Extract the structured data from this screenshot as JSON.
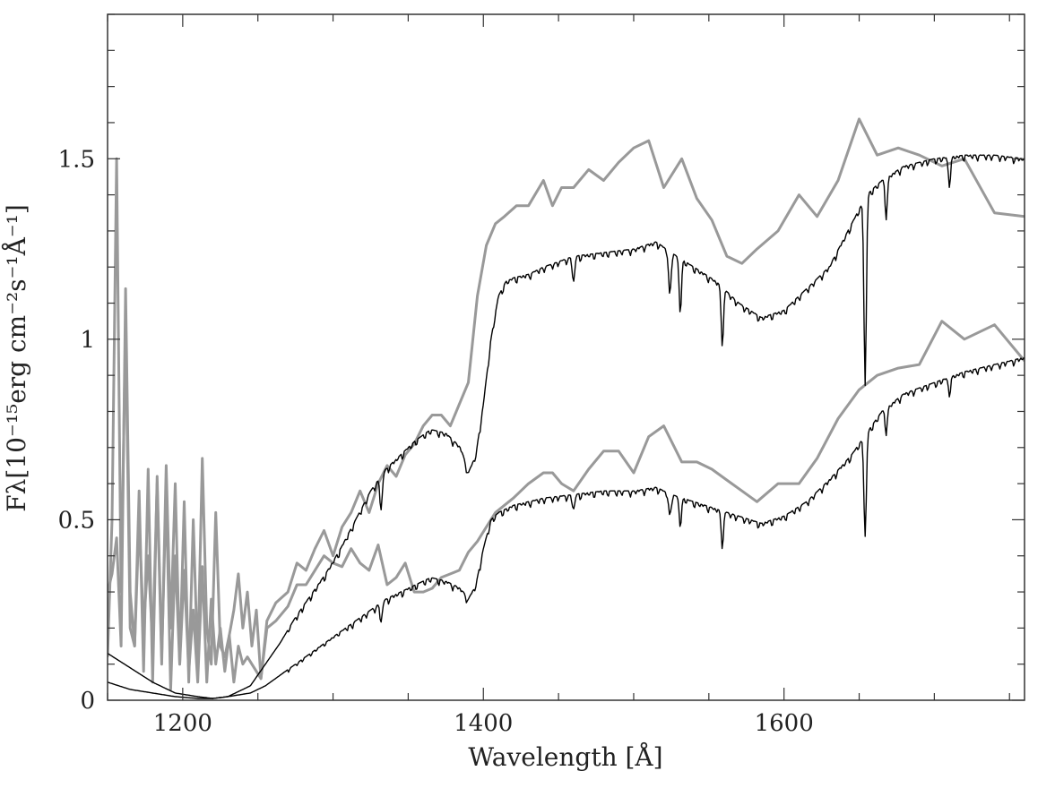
{
  "chart_data": {
    "type": "line",
    "title": "",
    "xlabel": "Wavelength [Å]",
    "ylabel": "Fλ[10⁻¹⁵erg cm⁻²s⁻¹Å⁻¹]",
    "xlim": [
      1150,
      1760
    ],
    "ylim": [
      0,
      1.9
    ],
    "x_ticks": [
      {
        "value": 1200,
        "label": "1200"
      },
      {
        "value": 1400,
        "label": "1400"
      },
      {
        "value": 1600,
        "label": "1600"
      }
    ],
    "y_ticks": [
      {
        "value": 0,
        "label": "0"
      },
      {
        "value": 0.5,
        "label": "0.5"
      },
      {
        "value": 1,
        "label": "1"
      },
      {
        "value": 1.5,
        "label": "1.5"
      }
    ],
    "grid": false,
    "legend": "none",
    "colors": {
      "observed": "#999999",
      "model": "#000000",
      "axes": "#333333"
    },
    "series": [
      {
        "style": "observed",
        "x": [
          1150,
          1153,
          1156,
          1159,
          1162,
          1165,
          1168,
          1171,
          1174,
          1177,
          1180,
          1183,
          1186,
          1189,
          1192,
          1195,
          1198,
          1201,
          1204,
          1207,
          1210,
          1213,
          1216,
          1219,
          1222,
          1225,
          1228,
          1231,
          1234,
          1237,
          1240,
          1243,
          1246,
          1249,
          1252,
          1256,
          1262,
          1270,
          1276,
          1282,
          1288,
          1294,
          1300,
          1306,
          1312,
          1318,
          1324,
          1330,
          1336,
          1342,
          1348,
          1354,
          1360,
          1366,
          1372,
          1378,
          1384,
          1390,
          1396,
          1402,
          1408,
          1414,
          1420,
          1430,
          1440,
          1446,
          1452,
          1460,
          1470,
          1480,
          1490,
          1500,
          1510,
          1520,
          1532,
          1542,
          1552,
          1562,
          1572,
          1582,
          1596,
          1610,
          1622,
          1636,
          1650,
          1662,
          1676,
          1690,
          1705,
          1720,
          1740,
          1760
        ],
        "y": [
          0.3,
          0.35,
          0.45,
          0.15,
          1.14,
          0.3,
          0.15,
          0.5,
          0.2,
          0.4,
          0.15,
          0.6,
          0.1,
          0.65,
          0.2,
          0.6,
          0.1,
          0.55,
          0.05,
          0.5,
          0.1,
          0.67,
          0.2,
          0.1,
          0.52,
          0.15,
          0.12,
          0.18,
          0.25,
          0.35,
          0.2,
          0.3,
          0.15,
          0.25,
          0.06,
          0.2,
          0.22,
          0.26,
          0.32,
          0.32,
          0.36,
          0.4,
          0.38,
          0.37,
          0.42,
          0.38,
          0.36,
          0.43,
          0.32,
          0.34,
          0.38,
          0.3,
          0.3,
          0.31,
          0.34,
          0.35,
          0.36,
          0.41,
          0.44,
          0.48,
          0.52,
          0.54,
          0.56,
          0.6,
          0.63,
          0.63,
          0.6,
          0.58,
          0.64,
          0.69,
          0.69,
          0.63,
          0.73,
          0.76,
          0.66,
          0.66,
          0.64,
          0.61,
          0.58,
          0.55,
          0.6,
          0.6,
          0.67,
          0.78,
          0.86,
          0.9,
          0.92,
          0.93,
          1.05,
          1.0,
          1.04,
          0.94
        ]
      },
      {
        "style": "observed",
        "x": [
          1150,
          1153,
          1156,
          1159,
          1162,
          1165,
          1168,
          1171,
          1174,
          1177,
          1180,
          1183,
          1186,
          1189,
          1192,
          1195,
          1198,
          1201,
          1204,
          1207,
          1210,
          1213,
          1216,
          1219,
          1222,
          1225,
          1228,
          1231,
          1234,
          1237,
          1240,
          1243,
          1246,
          1249,
          1252,
          1256,
          1262,
          1270,
          1276,
          1282,
          1288,
          1294,
          1300,
          1306,
          1312,
          1318,
          1324,
          1330,
          1336,
          1342,
          1348,
          1354,
          1360,
          1366,
          1372,
          1378,
          1384,
          1390,
          1396,
          1402,
          1408,
          1414,
          1422,
          1430,
          1440,
          1446,
          1452,
          1460,
          1470,
          1480,
          1490,
          1500,
          1510,
          1520,
          1532,
          1542,
          1552,
          1562,
          1572,
          1582,
          1596,
          1610,
          1622,
          1636,
          1650,
          1662,
          1676,
          1690,
          1705,
          1720,
          1740,
          1760
        ],
        "y": [
          0.12,
          0.5,
          1.5,
          0.3,
          1.04,
          0.2,
          0.15,
          0.58,
          0.08,
          0.64,
          0.05,
          0.62,
          0.12,
          0.58,
          0.03,
          0.4,
          0.1,
          0.36,
          0.08,
          0.25,
          0.05,
          0.37,
          0.05,
          0.28,
          0.1,
          0.2,
          0.08,
          0.18,
          0.05,
          0.15,
          0.1,
          0.12,
          0.1,
          0.08,
          0.06,
          0.22,
          0.27,
          0.3,
          0.38,
          0.36,
          0.42,
          0.47,
          0.4,
          0.48,
          0.52,
          0.58,
          0.52,
          0.6,
          0.65,
          0.62,
          0.68,
          0.71,
          0.76,
          0.79,
          0.79,
          0.76,
          0.82,
          0.88,
          1.12,
          1.26,
          1.32,
          1.34,
          1.37,
          1.37,
          1.44,
          1.37,
          1.42,
          1.42,
          1.47,
          1.44,
          1.49,
          1.53,
          1.55,
          1.42,
          1.5,
          1.39,
          1.33,
          1.23,
          1.21,
          1.25,
          1.3,
          1.4,
          1.34,
          1.44,
          1.61,
          1.51,
          1.53,
          1.51,
          1.48,
          1.5,
          1.35,
          1.34
        ]
      },
      {
        "style": "model",
        "x": [
          1150,
          1165,
          1180,
          1195,
          1210,
          1220,
          1230,
          1245,
          1255,
          1265,
          1275,
          1285,
          1295,
          1305,
          1315,
          1325,
          1335,
          1345,
          1355,
          1365,
          1375,
          1385,
          1390,
          1395,
          1400,
          1405,
          1410,
          1415,
          1420,
          1430,
          1440,
          1460,
          1480,
          1500,
          1515,
          1525,
          1540,
          1555,
          1570,
          1585,
          1600,
          1615,
          1630,
          1645,
          1655,
          1665,
          1680,
          1700,
          1720,
          1740,
          1760
        ],
        "y": [
          0.05,
          0.03,
          0.02,
          0.01,
          0.005,
          0.005,
          0.01,
          0.02,
          0.04,
          0.07,
          0.1,
          0.13,
          0.16,
          0.19,
          0.22,
          0.25,
          0.28,
          0.3,
          0.32,
          0.34,
          0.33,
          0.31,
          0.28,
          0.32,
          0.42,
          0.5,
          0.52,
          0.53,
          0.54,
          0.55,
          0.56,
          0.57,
          0.58,
          0.58,
          0.59,
          0.57,
          0.55,
          0.53,
          0.51,
          0.49,
          0.51,
          0.55,
          0.61,
          0.68,
          0.74,
          0.8,
          0.85,
          0.88,
          0.91,
          0.93,
          0.95
        ]
      },
      {
        "style": "model",
        "x": [
          1150,
          1165,
          1180,
          1195,
          1210,
          1220,
          1230,
          1245,
          1255,
          1265,
          1275,
          1285,
          1295,
          1305,
          1315,
          1325,
          1335,
          1345,
          1355,
          1365,
          1375,
          1385,
          1390,
          1395,
          1400,
          1405,
          1410,
          1415,
          1420,
          1430,
          1440,
          1460,
          1480,
          1500,
          1515,
          1525,
          1540,
          1555,
          1570,
          1585,
          1600,
          1615,
          1630,
          1645,
          1655,
          1665,
          1680,
          1700,
          1720,
          1740,
          1760
        ],
        "y": [
          0.13,
          0.09,
          0.05,
          0.02,
          0.01,
          0.005,
          0.01,
          0.04,
          0.1,
          0.16,
          0.23,
          0.29,
          0.35,
          0.42,
          0.5,
          0.58,
          0.64,
          0.68,
          0.72,
          0.75,
          0.74,
          0.7,
          0.63,
          0.68,
          0.82,
          1.0,
          1.12,
          1.16,
          1.17,
          1.18,
          1.2,
          1.23,
          1.24,
          1.25,
          1.27,
          1.24,
          1.2,
          1.16,
          1.1,
          1.06,
          1.08,
          1.14,
          1.2,
          1.32,
          1.4,
          1.44,
          1.48,
          1.5,
          1.51,
          1.51,
          1.5
        ]
      }
    ],
    "absorption_lines": [
      {
        "x": 1332,
        "depths": [
          0.05,
          0.09
        ]
      },
      {
        "x": 1460,
        "depths": [
          0.04,
          0.07
        ]
      },
      {
        "x": 1524,
        "depths": [
          0.06,
          0.12
        ]
      },
      {
        "x": 1531,
        "depths": [
          0.07,
          0.14
        ]
      },
      {
        "x": 1559,
        "depths": [
          0.09,
          0.15
        ]
      },
      {
        "x": 1654,
        "depths": [
          0.28,
          0.52
        ]
      },
      {
        "x": 1668,
        "depths": [
          0.06,
          0.1
        ]
      },
      {
        "x": 1710,
        "depths": [
          0.04,
          0.07
        ]
      }
    ]
  }
}
